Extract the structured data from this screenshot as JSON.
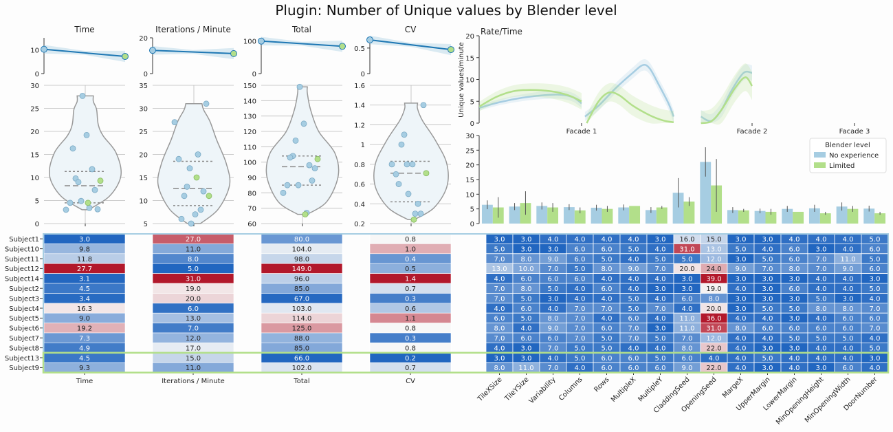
{
  "title": "Plugin: Number of Unique values by Blender level",
  "colors": {
    "no_experience": "#a6cde2",
    "limited": "#b2df8a",
    "regression": "#1f78b4",
    "violin_fill": "#eef5f9",
    "violin_edge": "#999999",
    "heat_low": "#2166c0",
    "heat_mid": "#f7f7f7",
    "heat_high": "#b2182b"
  },
  "chart_data": [
    {
      "type": "line",
      "id": "reg_time",
      "title": "Time",
      "ylim": [
        0,
        15
      ],
      "yticks": [
        0,
        10
      ],
      "points": [
        {
          "x": 0,
          "y": 10.2
        },
        {
          "x": 1,
          "y": 7.2
        }
      ]
    },
    {
      "type": "line",
      "id": "reg_iter",
      "title": "Iterations / Minute",
      "ylim": [
        0,
        20
      ],
      "yticks": [
        0,
        20
      ],
      "points": [
        {
          "x": 0,
          "y": 13.0
        },
        {
          "x": 1,
          "y": 11.2
        }
      ]
    },
    {
      "type": "line",
      "id": "reg_total",
      "title": "Total",
      "ylim": [
        0,
        110
      ],
      "yticks": [
        0,
        100
      ],
      "points": [
        {
          "x": 0,
          "y": 100.0
        },
        {
          "x": 1,
          "y": 84.0
        }
      ]
    },
    {
      "type": "line",
      "id": "reg_cv",
      "title": "CV",
      "ylim": [
        0,
        0.7
      ],
      "yticks": [
        0.0,
        0.5
      ],
      "points": [
        {
          "x": 0,
          "y": 0.66
        },
        {
          "x": 1,
          "y": 0.47
        }
      ]
    },
    {
      "type": "scatter",
      "id": "violin_time",
      "ylim": [
        0,
        30
      ],
      "yticks": [
        0,
        5,
        10,
        15,
        20,
        25,
        30
      ],
      "violin_range": [
        3.0,
        27.7
      ],
      "quartiles": [
        4.5,
        8.2,
        11.3
      ],
      "no_experience": [
        3.0,
        9.8,
        11.8,
        27.7,
        3.1,
        4.5,
        3.4,
        16.3,
        9.0,
        19.2,
        7.3,
        4.9
      ],
      "limited": [
        4.5,
        9.3
      ]
    },
    {
      "type": "scatter",
      "id": "violin_iter",
      "ylim": [
        5,
        35
      ],
      "yticks": [
        5,
        10,
        15,
        20,
        25,
        30,
        35
      ],
      "violin_range": [
        5.0,
        31.0
      ],
      "quartiles": [
        8.9,
        12.6,
        18.5
      ],
      "no_experience": [
        27.0,
        11.0,
        8.0,
        5.0,
        31.0,
        19.0,
        20.0,
        6.0,
        13.0,
        7.0,
        12.0,
        17.0
      ],
      "limited": [
        15.0,
        11.0
      ]
    },
    {
      "type": "scatter",
      "id": "violin_total",
      "ylim": [
        60,
        150
      ],
      "yticks": [
        60,
        70,
        80,
        90,
        100,
        110,
        120,
        130,
        140,
        150
      ],
      "violin_range": [
        66.0,
        149.0
      ],
      "quartiles": [
        85.0,
        97.0,
        104.0
      ],
      "no_experience": [
        80.0,
        104.0,
        98.0,
        149.0,
        96.0,
        85.0,
        67.0,
        103.0,
        114.0,
        125.0,
        88.0,
        85.0
      ],
      "limited": [
        66.0,
        102.0
      ]
    },
    {
      "type": "scatter",
      "id": "violin_cv",
      "ylim": [
        0.2,
        1.6
      ],
      "yticks": [
        0.2,
        0.4,
        0.6,
        0.8,
        1.0,
        1.2,
        1.4,
        1.6
      ],
      "violin_range": [
        0.24,
        1.42
      ],
      "quartiles": [
        0.42,
        0.71,
        0.83
      ],
      "no_experience": [
        0.8,
        1.0,
        0.4,
        0.5,
        1.4,
        0.7,
        0.3,
        0.6,
        1.1,
        0.8,
        0.3,
        0.8
      ],
      "limited": [
        0.24,
        0.71
      ]
    },
    {
      "type": "line",
      "id": "rate_time",
      "title": "Rate/Time",
      "ylabel": "Unique values/minute",
      "ylim": [
        0,
        20
      ],
      "yticks": [
        0,
        5,
        10,
        15,
        20
      ],
      "categories": [
        "Facade 1",
        "Facade 2",
        "Facade 3"
      ],
      "series": [
        {
          "name": "No experience",
          "segments": [
            [
              [
                0,
                3.5
              ],
              [
                0.12,
                4.8
              ],
              [
                0.25,
                5.8
              ],
              [
                0.38,
                6.4
              ],
              [
                0.48,
                6.5
              ],
              [
                0.55,
                5.9
              ],
              [
                0.6,
                4.5
              ]
            ],
            [
              [
                0.62,
                1.5
              ],
              [
                0.7,
                4.0
              ],
              [
                0.8,
                8.0
              ],
              [
                0.9,
                11.5
              ],
              [
                0.96,
                13.3
              ],
              [
                1.0,
                12.5
              ],
              [
                1.05,
                9.0
              ],
              [
                1.11,
                4.5
              ],
              [
                1.14,
                1.5
              ]
            ],
            [
              [
                1.3,
                1.5
              ],
              [
                1.36,
                0.5
              ],
              [
                1.42,
                3.0
              ],
              [
                1.48,
                7.5
              ],
              [
                1.55,
                11.5
              ],
              [
                1.6,
                11.5
              ]
            ]
          ]
        },
        {
          "name": "Limited",
          "segments": [
            [
              [
                0,
                3.8
              ],
              [
                0.1,
                6.0
              ],
              [
                0.2,
                7.3
              ],
              [
                0.3,
                7.6
              ],
              [
                0.42,
                7.3
              ],
              [
                0.52,
                6.4
              ],
              [
                0.6,
                5.0
              ]
            ],
            [
              [
                0.63,
                0.0
              ],
              [
                0.7,
                5.0
              ],
              [
                0.76,
                7.0
              ],
              [
                0.82,
                6.4
              ],
              [
                0.9,
                4.0
              ],
              [
                1.0,
                1.8
              ],
              [
                1.08,
                0.6
              ],
              [
                1.14,
                0.2
              ]
            ],
            [
              [
                1.3,
                0.0
              ],
              [
                1.36,
                0.4
              ],
              [
                1.42,
                3.0
              ],
              [
                1.5,
                8.0
              ],
              [
                1.56,
                10.5
              ],
              [
                1.6,
                8.5
              ]
            ]
          ]
        }
      ]
    },
    {
      "type": "bar",
      "id": "parameters_bar",
      "ylim": [
        0,
        30
      ],
      "yticks": [
        0,
        5,
        10,
        15,
        20,
        25,
        30
      ],
      "categories": [
        "TileXSize",
        "TileYSize",
        "Variability",
        "Columns",
        "Rows",
        "MultipleX",
        "MultipleY",
        "CladdingSeed",
        "OpeningSeed",
        "MargeX",
        "UpperMargin",
        "LowerMargin",
        "MinOpeningHeight",
        "MinOpeningWidth",
        "DoorNumber"
      ],
      "legend_title": "Blender level",
      "legend_position": "right",
      "series": [
        {
          "name": "No experience",
          "values": [
            6.4,
            5.8,
            6.0,
            5.6,
            5.4,
            5.5,
            4.6,
            10.5,
            21.0,
            4.6,
            4.3,
            5.0,
            5.2,
            5.8,
            5.1
          ],
          "errors": [
            1.5,
            1.2,
            1.2,
            1.0,
            1.0,
            1.0,
            1.0,
            5.0,
            5.0,
            1.0,
            0.8,
            1.0,
            1.2,
            1.4,
            1.0
          ]
        },
        {
          "name": "Limited",
          "values": [
            5.5,
            7.0,
            5.5,
            4.5,
            5.0,
            6.0,
            5.5,
            7.5,
            13.0,
            4.5,
            4.0,
            4.0,
            3.5,
            5.0,
            3.5
          ],
          "errors": [
            3.5,
            4.0,
            1.5,
            1.0,
            1.0,
            0.0,
            0.5,
            1.5,
            9.0,
            0.5,
            1.0,
            0.0,
            0.5,
            1.0,
            0.5
          ]
        }
      ]
    },
    {
      "type": "heatmap",
      "id": "subject_summary",
      "rows": [
        "Subject1",
        "Subject10",
        "Subject11",
        "Subject12",
        "Subject14",
        "Subject2",
        "Subject3",
        "Subject4",
        "Subject5",
        "Subject6",
        "Subject7",
        "Subject8",
        "Subject13",
        "Subject9"
      ],
      "columns": [
        {
          "label": "Time",
          "min": 3.0,
          "max": 27.7,
          "values": [
            "3.0",
            "9.8",
            "11.8",
            "27.7",
            "3.1",
            "4.5",
            "3.4",
            "16.3",
            "9.0",
            "19.2",
            "7.3",
            "4.9",
            "4.5",
            "9.3"
          ]
        },
        {
          "label": "Iterations / Minute",
          "min": 5.0,
          "max": 31.0,
          "values": [
            "27.0",
            "11.0",
            "8.0",
            "5.0",
            "31.0",
            "19.0",
            "20.0",
            "6.0",
            "13.0",
            "7.0",
            "12.0",
            "17.0",
            "15.0",
            "11.0"
          ]
        },
        {
          "label": "Total",
          "min": 66.0,
          "max": 149.0,
          "values": [
            "80.0",
            "104.0",
            "98.0",
            "149.0",
            "96.0",
            "85.0",
            "67.0",
            "103.0",
            "114.0",
            "125.0",
            "88.0",
            "85.0",
            "66.0",
            "102.0"
          ]
        },
        {
          "label": "CV",
          "min": 0.2,
          "max": 1.4,
          "values": [
            "0.8",
            "1.0",
            "0.4",
            "0.5",
            "1.4",
            "0.7",
            "0.3",
            "0.6",
            "1.1",
            "0.8",
            "0.3",
            "0.8",
            "0.2",
            "0.7"
          ]
        }
      ]
    },
    {
      "type": "heatmap",
      "id": "parameter_matrix",
      "min": 3.0,
      "max": 39.0,
      "columns": [
        "TileXSize",
        "TileYSize",
        "Variability",
        "Columns",
        "Rows",
        "MultipleX",
        "MultipleY",
        "CladdingSeed",
        "OpeningSeed",
        "MargeX",
        "UpperMargin",
        "LowerMargin",
        "MinOpeningHeight",
        "MinOpeningWidth",
        "DoorNumber"
      ],
      "values": [
        [
          "3.0",
          "3.0",
          "4.0",
          "4.0",
          "4.0",
          "4.0",
          "3.0",
          "16.0",
          "15.0",
          "3.0",
          "3.0",
          "4.0",
          "4.0",
          "4.0",
          "5.0"
        ],
        [
          "5.0",
          "3.0",
          "3.0",
          "6.0",
          "6.0",
          "5.0",
          "4.0",
          "31.0",
          "13.0",
          "5.0",
          "4.0",
          "6.0",
          "3.0",
          "4.0",
          "6.0"
        ],
        [
          "7.0",
          "8.0",
          "9.0",
          "6.0",
          "5.0",
          "4.0",
          "5.0",
          "5.0",
          "12.0",
          "3.0",
          "5.0",
          "6.0",
          "7.0",
          "11.0",
          "5.0"
        ],
        [
          "13.0",
          "10.0",
          "7.0",
          "5.0",
          "8.0",
          "9.0",
          "7.0",
          "20.0",
          "24.0",
          "9.0",
          "7.0",
          "8.0",
          "7.0",
          "9.0",
          "6.0"
        ],
        [
          "4.0",
          "6.0",
          "6.0",
          "6.0",
          "4.0",
          "4.0",
          "4.0",
          "3.0",
          "39.0",
          "3.0",
          "3.0",
          "3.0",
          "4.0",
          "4.0",
          "3.0"
        ],
        [
          "7.0",
          "8.0",
          "5.0",
          "4.0",
          "6.0",
          "4.0",
          "3.0",
          "3.0",
          "19.0",
          "4.0",
          "3.0",
          "6.0",
          "4.0",
          "4.0",
          "5.0"
        ],
        [
          "7.0",
          "5.0",
          "3.0",
          "4.0",
          "4.0",
          "5.0",
          "4.0",
          "6.0",
          "8.0",
          "3.0",
          "3.0",
          "3.0",
          "5.0",
          "3.0",
          "4.0"
        ],
        [
          "4.0",
          "6.0",
          "4.0",
          "7.0",
          "7.0",
          "5.0",
          "7.0",
          "4.0",
          "20.0",
          "3.0",
          "5.0",
          "5.0",
          "8.0",
          "8.0",
          "7.0"
        ],
        [
          "6.0",
          "5.0",
          "8.0",
          "7.0",
          "4.0",
          "6.0",
          "4.0",
          "11.0",
          "36.0",
          "4.0",
          "4.0",
          "3.0",
          "4.0",
          "6.0",
          "6.0"
        ],
        [
          "8.0",
          "4.0",
          "9.0",
          "7.0",
          "6.0",
          "7.0",
          "3.0",
          "11.0",
          "31.0",
          "8.0",
          "6.0",
          "6.0",
          "6.0",
          "6.0",
          "7.0"
        ],
        [
          "7.0",
          "6.0",
          "6.0",
          "7.0",
          "5.0",
          "7.0",
          "5.0",
          "7.0",
          "12.0",
          "4.0",
          "4.0",
          "5.0",
          "5.0",
          "5.0",
          "4.0"
        ],
        [
          "4.0",
          "3.0",
          "7.0",
          "5.0",
          "5.0",
          "4.0",
          "4.0",
          "8.0",
          "22.0",
          "4.0",
          "3.0",
          "3.0",
          "4.0",
          "4.0",
          "5.0"
        ],
        [
          "3.0",
          "3.0",
          "4.0",
          "5.0",
          "6.0",
          "6.0",
          "5.0",
          "6.0",
          "4.0",
          "4.0",
          "5.0",
          "4.0",
          "4.0",
          "4.0",
          "3.0"
        ],
        [
          "8.0",
          "11.0",
          "7.0",
          "4.0",
          "6.0",
          "6.0",
          "6.0",
          "9.0",
          "22.0",
          "4.0",
          "3.0",
          "4.0",
          "3.0",
          "6.0",
          "4.0"
        ]
      ]
    }
  ]
}
